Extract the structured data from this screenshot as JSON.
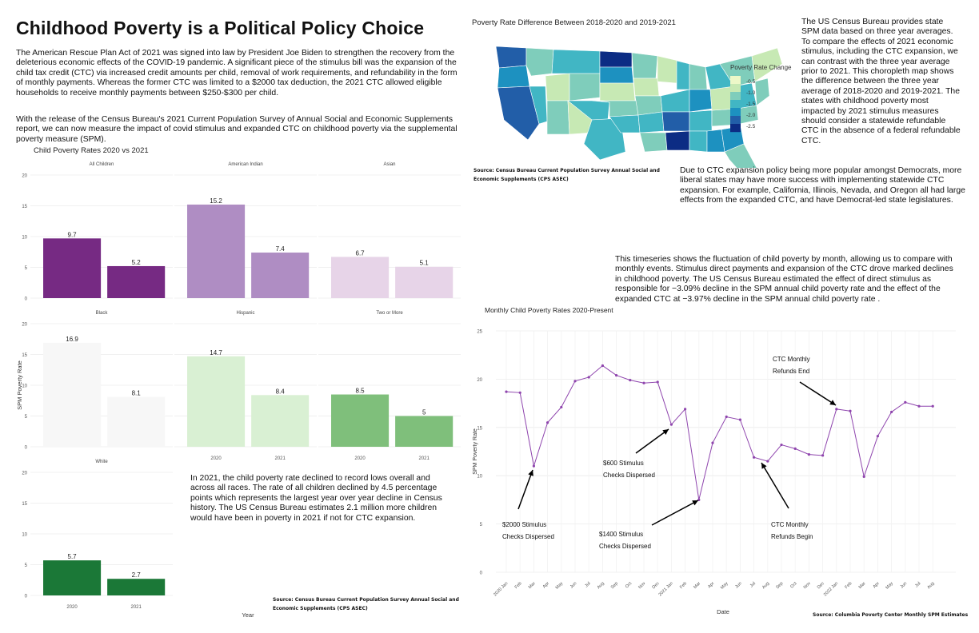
{
  "title": "Childhood Poverty is a Political Policy Choice",
  "intro1": "The American Rescue Plan Act of 2021 was signed into law by President Joe Biden to strengthen the recovery from the deleterious economic effects of the COVID-19 pandemic. A significant piece of the stimulus bill was the expansion of the child tax credit (CTC) via increased credit amounts per child, removal of work requirements, and refundability in the form of monthly payments. Whereas the former CTC was limited to a $2000 tax deduction, the 2021 CTC allowed eligible households to receive monthly payments between $250-$300 per child.",
  "intro2": "With the release of the Census Bureau's 2021 Current Population Survey of Annual Social and Economic Supplements report, we can now measure the impact of covid stimulus and expanded CTC on childhood poverty via the supplemental poverty measure (SPM).",
  "right_text1": "The US Census Bureau provides state SPM data based on three year averages. To compare the effects of 2021 economic stimulus, including the CTC expansion, we can contrast with the three year average prior to 2021. This choropleth map shows the difference between the three year average of 2018-2020 and 2019-2021. The states with childhood poverty most impacted by 2021 stimulus measures should consider a statewide refundable CTC in the absence of a federal refundable CTC.",
  "right_text2": "Due to CTC expansion policy being more popular amongst Democrats,  more liberal states may have more success with implementing statewide CTC expansion. For example, California, Illinois, Nevada, and Oregon all had large effects from the expanded CTC, and have Democrat-led state legislatures.",
  "right_text3": "This timeseries shows the fluctuation of child poverty by month, allowing us to compare with monthly events. Stimulus direct payments and expansion of the CTC drove marked declines in childhood poverty. The US Census Bureau estimated the effect of direct stimulus as responsible for −3.09% decline in the SPM annual child poverty rate and the effect of the expanded CTC at −3.97% decline in the SPM annual child poverty rate .",
  "bottom_text": "In 2021, the child poverty rate declined to record lows overall and across all races.  The rate of all children declined by 4.5 percentage points which represents the largest year over year decline in Census history.  The US Census Bureau estimates 2.1 million more children would have been in poverty in 2021 if not for CTC expansion.",
  "source_cps_line1": "Source: Census Bureau Current Population Survey Annual Social and",
  "source_cps_line2": "Economic Supplements (CPS ASEC)",
  "source_monthly": "Source: Columbia Poverty Center Monthly SPM Estimates",
  "chart_data": [
    {
      "type": "bar",
      "title": "Child Poverty Rates 2020 vs 2021",
      "xlabel": "Year",
      "ylabel": "SPM Poverty Rate",
      "ylim": [
        0,
        20
      ],
      "yticks": [
        0,
        5,
        10,
        15,
        20
      ],
      "categories": [
        "2020",
        "2021"
      ],
      "grid": true,
      "panels": [
        {
          "name": "All Children",
          "values": [
            9.7,
            5.2
          ],
          "color": "#762a83"
        },
        {
          "name": "American Indian",
          "values": [
            15.2,
            7.4
          ],
          "color": "#af8dc3"
        },
        {
          "name": "Asian",
          "values": [
            6.7,
            5.1
          ],
          "color": "#e7d4e8"
        },
        {
          "name": "Black",
          "values": [
            16.9,
            8.1
          ],
          "color": "#f7f7f7"
        },
        {
          "name": "Hispanic",
          "values": [
            14.7,
            8.4
          ],
          "color": "#d9f0d3"
        },
        {
          "name": "Two or More",
          "values": [
            8.5,
            5
          ],
          "color": "#7fbf7b"
        },
        {
          "name": "White",
          "values": [
            5.7,
            2.7
          ],
          "color": "#1b7837"
        }
      ]
    },
    {
      "type": "choropleth",
      "title": "Poverty Rate Difference Between 2018-2020 and 2019-2021",
      "legend_title": "Poverty Rate Change",
      "legend_ticks": [
        "-0.5",
        "-1.0",
        "-1.5",
        "-2.0",
        "-2.5"
      ],
      "colors": [
        "#edf8c8",
        "#c7e9b4",
        "#7fcdbb",
        "#41b6c4",
        "#1d91c0",
        "#225ea8",
        "#0c2c84"
      ]
    },
    {
      "type": "line",
      "title": "Monthly Child Poverty Rates 2020-Present",
      "xlabel": "Date",
      "ylabel": "SPM Poverty Rate",
      "ylim": [
        0,
        25
      ],
      "yticks": [
        0,
        5,
        10,
        15,
        20,
        25
      ],
      "x": [
        "2020 Jan",
        "Feb",
        "Mar",
        "Apr",
        "May",
        "Jun",
        "Jul",
        "Aug",
        "Sep",
        "Oct",
        "Nov",
        "Dec",
        "2021 Jan",
        "Feb",
        "Mar",
        "Apr",
        "May",
        "Jun",
        "Jul",
        "Aug",
        "Sep",
        "Oct",
        "Nov",
        "Dec",
        "2022 Jan",
        "Feb",
        "Mar",
        "Apr",
        "May",
        "Jun",
        "Jul",
        "Aug"
      ],
      "values": [
        18.7,
        18.6,
        11.0,
        15.5,
        17.1,
        19.8,
        20.2,
        21.4,
        20.4,
        19.9,
        19.6,
        19.7,
        15.3,
        16.9,
        7.5,
        13.4,
        16.1,
        15.8,
        11.9,
        11.5,
        13.2,
        12.8,
        12.2,
        12.1,
        16.9,
        16.7,
        9.9,
        14.1,
        16.6,
        17.6,
        17.2,
        17.2
      ],
      "color": "#8e44ad",
      "annotations": [
        {
          "line1": "$2000 Stimulus",
          "line2": "Checks Dispersed",
          "target_index": 2
        },
        {
          "line1": "$600 Stimulus",
          "line2": "Checks Dispersed",
          "target_index": 12
        },
        {
          "line1": "$1400 Stimulus",
          "line2": "Checks Dispersed",
          "target_index": 14
        },
        {
          "line1": "CTC  Monthly",
          "line2": "Refunds Begin",
          "target_index": 18
        },
        {
          "line1": "CTC Monthly",
          "line2": "Refunds End",
          "target_index": 24
        }
      ]
    }
  ]
}
